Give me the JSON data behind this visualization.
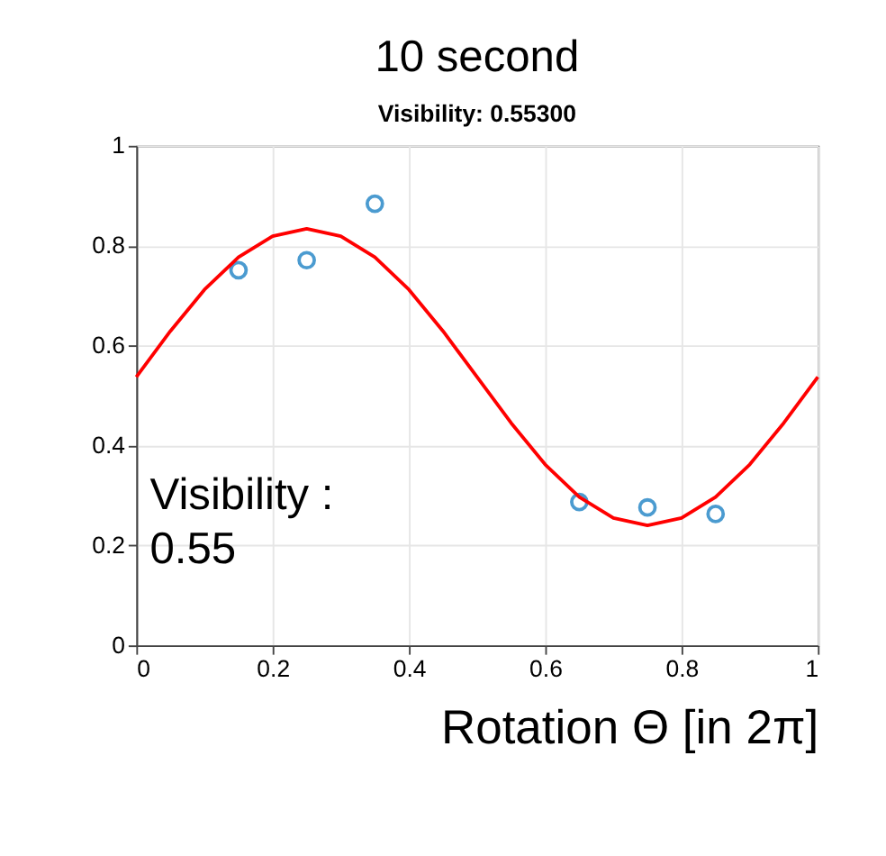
{
  "chart_data": {
    "type": "scatter",
    "title": "10 second",
    "subtitle": "Visibility: 0.55300",
    "xlabel": "Rotation Θ [in 2π]",
    "annotations": [
      "Visibility :\n0.55"
    ],
    "series": [
      {
        "color": "#0072bd",
        "marker": "circle",
        "x": [
          0.15,
          0.25,
          0.35,
          0.65,
          0.75,
          0.85
        ],
        "values": [
          0.751,
          0.771,
          0.884,
          0.287,
          0.276,
          0.263
        ]
      },
      {
        "type": "line",
        "color": "#ff0000",
        "line_style": "solid",
        "marker": "none",
        "x": [
          0,
          0.05,
          0.1,
          0.15,
          0.2,
          0.25,
          0.3,
          0.35,
          0.4,
          0.45,
          0.5,
          0.55,
          0.6,
          0.65,
          0.7,
          0.75,
          0.8,
          0.85,
          0.9,
          0.95,
          1
        ],
        "values": [
          0.537,
          0.629,
          0.712,
          0.777,
          0.819,
          0.834,
          0.819,
          0.777,
          0.712,
          0.629,
          0.537,
          0.445,
          0.362,
          0.297,
          0.255,
          0.24,
          0.255,
          0.297,
          0.362,
          0.445,
          0.537
        ]
      }
    ],
    "xlim": [
      0,
      1
    ],
    "xticks": [
      0,
      0.2,
      0.4,
      0.6,
      0.8,
      1
    ],
    "ylim": [
      0,
      1
    ],
    "yticks": [
      0,
      0.2,
      0.4,
      0.6,
      0.8,
      1
    ],
    "grid": true
  }
}
